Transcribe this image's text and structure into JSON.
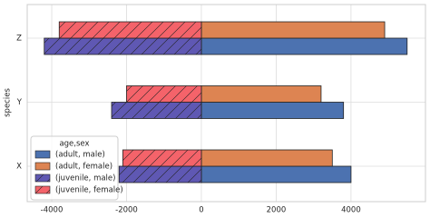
{
  "chart_data": {
    "type": "barh",
    "ylabel": "species",
    "categories": [
      "X",
      "Y",
      "Z"
    ],
    "legend_title": "age,sex",
    "legend": "lower left",
    "grid": true,
    "xlim": [
      -4655,
      5990
    ],
    "xticks": [
      -4000,
      -2000,
      0,
      2000,
      4000
    ],
    "series": [
      {
        "name": "(adult, male)",
        "color": "#4c72b0",
        "hatch": false,
        "values": [
          4000,
          3800,
          5500
        ]
      },
      {
        "name": "(adult, female)",
        "color": "#dd8452",
        "hatch": false,
        "values": [
          3500,
          3200,
          4900
        ]
      },
      {
        "name": "(juvenile, male)",
        "color": "#5f58b3",
        "hatch": true,
        "values": [
          -2200,
          -2400,
          -4200
        ]
      },
      {
        "name": "(juvenile, female)",
        "color": "#f4636a",
        "hatch": true,
        "values": [
          -2100,
          -2000,
          -3800
        ]
      }
    ]
  }
}
